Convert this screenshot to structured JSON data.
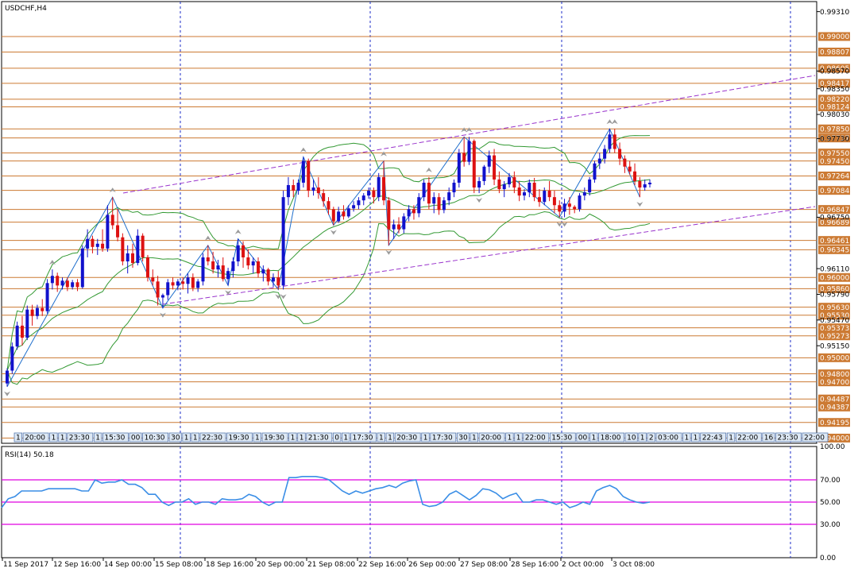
{
  "chart_data": {
    "type": "candlestick",
    "title": "USDCHF,H4",
    "indicator_label": "RSI(14) 50.18",
    "price_axis": {
      "range": [
        0.93935,
        0.99435
      ],
      "ticks": [
        "0.99310",
        "0.98570",
        "0.98350",
        "0.98030",
        "0.97730",
        "0.96750",
        "0.96110",
        "0.95790",
        "0.95470",
        "0.95150"
      ]
    },
    "rsi_axis": {
      "range": [
        0,
        100
      ],
      "ticks": [
        "100.00",
        "70.00",
        "50.00",
        "30.00",
        "0.00"
      ],
      "levels": [
        70,
        50,
        30
      ]
    },
    "x_labels": [
      "11 Sep 2017",
      "12 Sep 16:00",
      "14 Sep 00:00",
      "15 Sep 08:00",
      "18 Sep 16:00",
      "20 Sep 00:00",
      "21 Sep 08:00",
      "22 Sep 16:00",
      "26 Sep 00:00",
      "27 Sep 08:00",
      "28 Sep 16:00",
      "2 Oct 00:00",
      "3 Oct 08:00"
    ],
    "level_lines": [
      "0.99000",
      "0.98807",
      "0.98605",
      "0.98417",
      "0.98220",
      "0.98124",
      "0.97850",
      "0.97737",
      "0.97550",
      "0.97450",
      "0.97264",
      "0.97084",
      "0.96847",
      "0.96689",
      "0.96461",
      "0.96345",
      "0.96000",
      "0.95860",
      "0.95630",
      "0.95530",
      "0.95373",
      "0.95273",
      "0.95000",
      "0.94800",
      "0.94700",
      "0.94487",
      "0.94387",
      "0.94195",
      "0.94000"
    ],
    "time_strip": [
      "1",
      "20:00",
      "1",
      "1",
      "23:30",
      "1",
      "15:30",
      "00",
      "10:30",
      "30",
      "1",
      "1",
      "22:30",
      "19:30",
      "1",
      "19:30",
      "1",
      "1",
      "21:30",
      "0",
      "1",
      "17:30",
      "1",
      "1",
      "20:30",
      "1",
      "17:30",
      "30",
      "1",
      "20:00",
      "1",
      "1",
      "22:00",
      "15:30",
      "00",
      "1",
      "18:00",
      "10",
      "1",
      "2",
      "03:00",
      "1",
      "1",
      "22:43",
      "1",
      "22:00",
      "16",
      "23:30",
      "22:00"
    ],
    "candles": [
      [
        0.9468,
        0.9487,
        0.9464,
        0.9484
      ],
      [
        0.9484,
        0.9519,
        0.948,
        0.9514
      ],
      [
        0.9514,
        0.9545,
        0.951,
        0.954
      ],
      [
        0.954,
        0.9552,
        0.9515,
        0.9525
      ],
      [
        0.9525,
        0.9565,
        0.9522,
        0.956
      ],
      [
        0.956,
        0.9566,
        0.954,
        0.9552
      ],
      [
        0.9552,
        0.9566,
        0.9548,
        0.9562
      ],
      [
        0.9562,
        0.9573,
        0.9552,
        0.9558
      ],
      [
        0.9558,
        0.9598,
        0.9555,
        0.9593
      ],
      [
        0.9593,
        0.961,
        0.9585,
        0.9602
      ],
      [
        0.9602,
        0.9606,
        0.9582,
        0.959
      ],
      [
        0.959,
        0.96,
        0.9585,
        0.9596
      ],
      [
        0.9596,
        0.96,
        0.9583,
        0.9588
      ],
      [
        0.9588,
        0.9597,
        0.9585,
        0.9594
      ],
      [
        0.9594,
        0.9598,
        0.9583,
        0.9588
      ],
      [
        0.9588,
        0.964,
        0.9586,
        0.9636
      ],
      [
        0.9636,
        0.966,
        0.9625,
        0.9648
      ],
      [
        0.9648,
        0.9652,
        0.963,
        0.9638
      ],
      [
        0.9638,
        0.9648,
        0.9628,
        0.9642
      ],
      [
        0.9642,
        0.966,
        0.9632,
        0.9636
      ],
      [
        0.9636,
        0.969,
        0.9632,
        0.9678
      ],
      [
        0.9678,
        0.97,
        0.966,
        0.9665
      ],
      [
        0.9665,
        0.9685,
        0.9645,
        0.965
      ],
      [
        0.965,
        0.9655,
        0.9615,
        0.962
      ],
      [
        0.962,
        0.964,
        0.9605,
        0.963
      ],
      [
        0.963,
        0.9642,
        0.9612,
        0.9618
      ],
      [
        0.9618,
        0.966,
        0.9615,
        0.9652
      ],
      [
        0.9652,
        0.9655,
        0.962,
        0.9625
      ],
      [
        0.9625,
        0.9628,
        0.9595,
        0.96
      ],
      [
        0.96,
        0.961,
        0.959,
        0.9595
      ],
      [
        0.9595,
        0.9602,
        0.9565,
        0.9575
      ],
      [
        0.9575,
        0.958,
        0.9562,
        0.9578
      ],
      [
        0.9578,
        0.9598,
        0.9572,
        0.9594
      ],
      [
        0.9594,
        0.96,
        0.9585,
        0.959
      ],
      [
        0.959,
        0.9598,
        0.9584,
        0.9595
      ],
      [
        0.9595,
        0.96,
        0.9585,
        0.9592
      ],
      [
        0.9592,
        0.9605,
        0.958,
        0.96
      ],
      [
        0.96,
        0.9605,
        0.9583,
        0.9587
      ],
      [
        0.9587,
        0.9598,
        0.9582,
        0.9595
      ],
      [
        0.9595,
        0.963,
        0.959,
        0.9625
      ],
      [
        0.9625,
        0.964,
        0.9615,
        0.962
      ],
      [
        0.962,
        0.9632,
        0.9605,
        0.961
      ],
      [
        0.961,
        0.9622,
        0.96,
        0.9615
      ],
      [
        0.9615,
        0.9625,
        0.9595,
        0.9598
      ],
      [
        0.9598,
        0.9612,
        0.959,
        0.9608
      ],
      [
        0.9608,
        0.9625,
        0.96,
        0.962
      ],
      [
        0.962,
        0.9648,
        0.9614,
        0.964
      ],
      [
        0.964,
        0.9645,
        0.9612,
        0.9625
      ],
      [
        0.9625,
        0.9635,
        0.961,
        0.9615
      ],
      [
        0.9615,
        0.9625,
        0.9605,
        0.962
      ],
      [
        0.962,
        0.9625,
        0.96,
        0.9605
      ],
      [
        0.9605,
        0.9615,
        0.9595,
        0.961
      ],
      [
        0.961,
        0.9612,
        0.959,
        0.9595
      ],
      [
        0.9595,
        0.9605,
        0.9588,
        0.96
      ],
      [
        0.96,
        0.9608,
        0.9585,
        0.959
      ],
      [
        0.959,
        0.9708,
        0.9585,
        0.97
      ],
      [
        0.97,
        0.9725,
        0.969,
        0.9715
      ],
      [
        0.9715,
        0.9722,
        0.97,
        0.9708
      ],
      [
        0.9708,
        0.9722,
        0.9703,
        0.9718
      ],
      [
        0.9718,
        0.975,
        0.9712,
        0.9745
      ],
      [
        0.9745,
        0.9748,
        0.97,
        0.9708
      ],
      [
        0.9708,
        0.9722,
        0.9702,
        0.9712
      ],
      [
        0.9712,
        0.9725,
        0.9698,
        0.9705
      ],
      [
        0.9705,
        0.971,
        0.9688,
        0.9695
      ],
      [
        0.9695,
        0.97,
        0.9678,
        0.9685
      ],
      [
        0.9685,
        0.9688,
        0.9665,
        0.967
      ],
      [
        0.967,
        0.9688,
        0.9668,
        0.9682
      ],
      [
        0.9682,
        0.969,
        0.9672,
        0.9676
      ],
      [
        0.9676,
        0.969,
        0.9674,
        0.9686
      ],
      [
        0.9686,
        0.9695,
        0.9682,
        0.969
      ],
      [
        0.969,
        0.97,
        0.9685,
        0.9696
      ],
      [
        0.9696,
        0.9705,
        0.969,
        0.9702
      ],
      [
        0.9702,
        0.9712,
        0.9698,
        0.9708
      ],
      [
        0.9708,
        0.9712,
        0.9692,
        0.97
      ],
      [
        0.97,
        0.973,
        0.9695,
        0.9725
      ],
      [
        0.9725,
        0.9745,
        0.969,
        0.9696
      ],
      [
        0.9696,
        0.97,
        0.964,
        0.966
      ],
      [
        0.966,
        0.9672,
        0.9648,
        0.9666
      ],
      [
        0.9666,
        0.9675,
        0.9655,
        0.966
      ],
      [
        0.966,
        0.968,
        0.9655,
        0.9676
      ],
      [
        0.9676,
        0.969,
        0.967,
        0.9685
      ],
      [
        0.9685,
        0.969,
        0.9672,
        0.968
      ],
      [
        0.968,
        0.9705,
        0.9675,
        0.97
      ],
      [
        0.97,
        0.9722,
        0.9695,
        0.9718
      ],
      [
        0.9718,
        0.9725,
        0.9685,
        0.9692
      ],
      [
        0.9692,
        0.9706,
        0.968,
        0.97
      ],
      [
        0.97,
        0.9705,
        0.9678,
        0.9684
      ],
      [
        0.9684,
        0.97,
        0.968,
        0.9696
      ],
      [
        0.9696,
        0.9712,
        0.969,
        0.9706
      ],
      [
        0.9706,
        0.9722,
        0.97,
        0.9718
      ],
      [
        0.9718,
        0.976,
        0.9712,
        0.9755
      ],
      [
        0.9755,
        0.9775,
        0.9738,
        0.9744
      ],
      [
        0.9744,
        0.9775,
        0.974,
        0.977
      ],
      [
        0.977,
        0.9772,
        0.9705,
        0.9712
      ],
      [
        0.9712,
        0.9725,
        0.9705,
        0.972
      ],
      [
        0.972,
        0.974,
        0.9715,
        0.9738
      ],
      [
        0.9738,
        0.9758,
        0.973,
        0.9752
      ],
      [
        0.9752,
        0.976,
        0.9715,
        0.9722
      ],
      [
        0.9722,
        0.9732,
        0.9705,
        0.971
      ],
      [
        0.971,
        0.972,
        0.97,
        0.9716
      ],
      [
        0.9716,
        0.973,
        0.9712,
        0.9725
      ],
      [
        0.9725,
        0.9732,
        0.9705,
        0.9712
      ],
      [
        0.9712,
        0.972,
        0.9695,
        0.9702
      ],
      [
        0.9702,
        0.971,
        0.9696,
        0.9706
      ],
      [
        0.9706,
        0.9722,
        0.97,
        0.9718
      ],
      [
        0.9718,
        0.9724,
        0.9695,
        0.97
      ],
      [
        0.97,
        0.971,
        0.9688,
        0.9694
      ],
      [
        0.9694,
        0.9712,
        0.969,
        0.9708
      ],
      [
        0.9708,
        0.972,
        0.9695,
        0.97
      ],
      [
        0.97,
        0.9708,
        0.968,
        0.969
      ],
      [
        0.969,
        0.9696,
        0.9675,
        0.9682
      ],
      [
        0.9682,
        0.9698,
        0.9675,
        0.9692
      ],
      [
        0.9692,
        0.97,
        0.9678,
        0.9688
      ],
      [
        0.9688,
        0.969,
        0.968,
        0.9685
      ],
      [
        0.9685,
        0.9705,
        0.9682,
        0.9702
      ],
      [
        0.9702,
        0.9712,
        0.9696,
        0.9706
      ],
      [
        0.9706,
        0.9725,
        0.9702,
        0.9722
      ],
      [
        0.9722,
        0.9745,
        0.9718,
        0.9742
      ],
      [
        0.9742,
        0.9755,
        0.9735,
        0.9748
      ],
      [
        0.9748,
        0.9765,
        0.9742,
        0.976
      ],
      [
        0.976,
        0.9785,
        0.9755,
        0.9778
      ],
      [
        0.9778,
        0.9785,
        0.9755,
        0.976
      ],
      [
        0.976,
        0.9768,
        0.974,
        0.9748
      ],
      [
        0.9748,
        0.9752,
        0.973,
        0.9738
      ],
      [
        0.9738,
        0.9745,
        0.9728,
        0.9732
      ],
      [
        0.9732,
        0.9742,
        0.9715,
        0.972
      ],
      [
        0.972,
        0.9725,
        0.97,
        0.9712
      ],
      [
        0.9712,
        0.9722,
        0.9708,
        0.9716
      ],
      [
        0.9716,
        0.9722,
        0.9712,
        0.9718
      ]
    ],
    "rsi_values": [
      45,
      53,
      55,
      60,
      60,
      60,
      60,
      62,
      62,
      62,
      62,
      62,
      60,
      60,
      70,
      67,
      68,
      68,
      70,
      66,
      66,
      63,
      57,
      57,
      50,
      47,
      50,
      50,
      53,
      48,
      50,
      50,
      48,
      53,
      52,
      52,
      53,
      57,
      55,
      50,
      47,
      50,
      50,
      72,
      72,
      73,
      73,
      73,
      72,
      70,
      65,
      60,
      57,
      60,
      58,
      60,
      62,
      63,
      65,
      63,
      67,
      69,
      70,
      48,
      46,
      47,
      50,
      57,
      60,
      56,
      52,
      56,
      62,
      61,
      58,
      53,
      56,
      58,
      50,
      50,
      52,
      52,
      50,
      48,
      50,
      45,
      47,
      50,
      48,
      60,
      63,
      65,
      62,
      55,
      52,
      50,
      49,
      50
    ],
    "colors": {
      "bull": "#1111cc",
      "bear": "#dd1111",
      "level": "#cc7a33",
      "channel": "#9933cc",
      "band": "#339933",
      "zigzag": "#1f6fcc",
      "rsi": "#3a8ee6",
      "rsi_levels": "#e000e0",
      "grid": "#1e2ec8"
    }
  }
}
